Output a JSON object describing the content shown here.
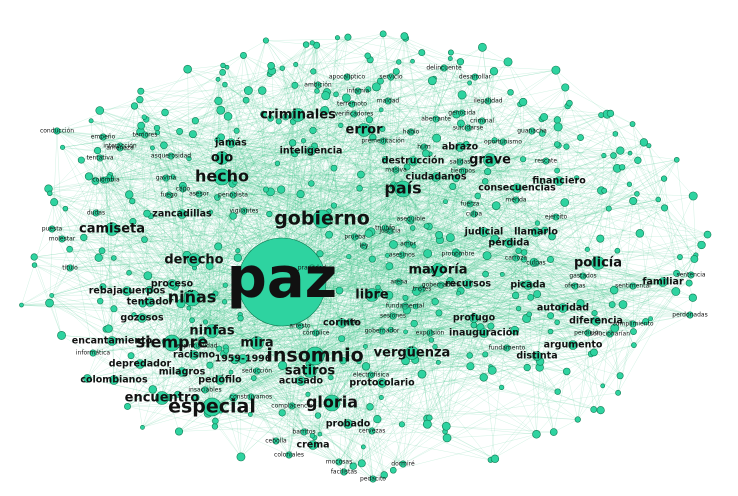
{
  "graph": {
    "node_color": "#2ed3a0",
    "edge_color": "#2fbf7e",
    "label_color": "#111111",
    "nodes": [
      {
        "label": "paz",
        "weight": 10
      },
      {
        "label": "gobierno",
        "weight": 5
      },
      {
        "label": "especial",
        "weight": 5
      },
      {
        "label": "insomnio",
        "weight": 5
      },
      {
        "label": "país",
        "weight": 4
      },
      {
        "label": "hecho",
        "weight": 4
      },
      {
        "label": "gloria",
        "weight": 4
      },
      {
        "label": "niñas",
        "weight": 4
      },
      {
        "label": "siempre",
        "weight": 4
      },
      {
        "label": "mayoría",
        "weight": 3
      },
      {
        "label": "policía",
        "weight": 3
      },
      {
        "label": "camiseta",
        "weight": 3
      },
      {
        "label": "libre",
        "weight": 3
      },
      {
        "label": "criminales",
        "weight": 3
      },
      {
        "label": "grave",
        "weight": 3
      },
      {
        "label": "error",
        "weight": 3
      },
      {
        "label": "ojo",
        "weight": 3
      },
      {
        "label": "ninfas",
        "weight": 3
      },
      {
        "label": "satiros",
        "weight": 3
      },
      {
        "label": "derecho",
        "weight": 3
      },
      {
        "label": "encuentro",
        "weight": 3
      },
      {
        "label": "mira",
        "weight": 3
      },
      {
        "label": "vergüenza",
        "weight": 3
      },
      {
        "label": "ciudadanos",
        "weight": 2
      },
      {
        "label": "jamás",
        "weight": 2
      },
      {
        "label": "abrazo",
        "weight": 2
      },
      {
        "label": "proceso",
        "weight": 2
      },
      {
        "label": "familiar",
        "weight": 2
      },
      {
        "label": "autoridad",
        "weight": 2
      },
      {
        "label": "diferencia",
        "weight": 2
      },
      {
        "label": "profugo",
        "weight": 2
      },
      {
        "label": "inauguración",
        "weight": 2
      },
      {
        "label": "protocolario",
        "weight": 2
      },
      {
        "label": "consecuencias",
        "weight": 2
      },
      {
        "label": "destrucción",
        "weight": 2
      },
      {
        "label": "inteligencia",
        "weight": 2
      },
      {
        "label": "rebajacuerpos",
        "weight": 2
      },
      {
        "label": "encantamiento",
        "weight": 2
      },
      {
        "label": "colombianos",
        "weight": 2
      },
      {
        "label": "zancadillas",
        "weight": 2
      },
      {
        "label": "milagros",
        "weight": 2
      },
      {
        "label": "racismo",
        "weight": 2
      },
      {
        "label": "depredador",
        "weight": 2
      },
      {
        "label": "gozosos",
        "weight": 2
      },
      {
        "label": "tentador",
        "weight": 2
      },
      {
        "label": "pedófilo",
        "weight": 2
      },
      {
        "label": "1959-1996",
        "weight": 2
      },
      {
        "label": "acusado",
        "weight": 2
      },
      {
        "label": "crema",
        "weight": 2
      },
      {
        "label": "probado",
        "weight": 2
      },
      {
        "label": "corinto",
        "weight": 2
      },
      {
        "label": "picada",
        "weight": 2
      },
      {
        "label": "recursos",
        "weight": 2
      },
      {
        "label": "distinta",
        "weight": 2
      },
      {
        "label": "argumento",
        "weight": 2
      },
      {
        "label": "llamarlo",
        "weight": 2
      },
      {
        "label": "pérdida",
        "weight": 2
      },
      {
        "label": "judicial",
        "weight": 2
      },
      {
        "label": "financiero",
        "weight": 2
      },
      {
        "label": "ambición",
        "weight": 1
      },
      {
        "label": "delincuente",
        "weight": 1
      },
      {
        "label": "desarrollar",
        "weight": 1
      },
      {
        "label": "apocalíptico",
        "weight": 1
      },
      {
        "label": "servicio",
        "weight": 1
      },
      {
        "label": "infamia",
        "weight": 1
      },
      {
        "label": "ilegalidad",
        "weight": 1
      },
      {
        "label": "verificadores",
        "weight": 1
      },
      {
        "label": "terremoto",
        "weight": 1
      },
      {
        "label": "maldad",
        "weight": 1
      },
      {
        "label": "genocida",
        "weight": 1
      },
      {
        "label": "criminal",
        "weight": 1
      },
      {
        "label": "suicidarse",
        "weight": 1
      },
      {
        "label": "aberrante",
        "weight": 1
      },
      {
        "label": "premeditación",
        "weight": 1
      },
      {
        "label": "guanacha",
        "weight": 1
      },
      {
        "label": "oportunismo",
        "weight": 1
      },
      {
        "label": "masiva",
        "weight": 1
      },
      {
        "label": "salidas",
        "weight": 1
      },
      {
        "label": "tiempos",
        "weight": 1
      },
      {
        "label": "periodista",
        "weight": 1
      },
      {
        "label": "gaviria",
        "weight": 1
      },
      {
        "label": "colombia",
        "weight": 1
      },
      {
        "label": "amenaza",
        "weight": 1
      },
      {
        "label": "asquerosidad",
        "weight": 1
      },
      {
        "label": "interacción",
        "weight": 1
      },
      {
        "label": "tentativa",
        "weight": 1
      },
      {
        "label": "conducción",
        "weight": 1
      },
      {
        "label": "empeño",
        "weight": 1
      },
      {
        "label": "temores",
        "weight": 1
      },
      {
        "label": "dudas",
        "weight": 1
      },
      {
        "label": "puesta",
        "weight": 1
      },
      {
        "label": "molestar",
        "weight": 1
      },
      {
        "label": "título",
        "weight": 1
      },
      {
        "label": "informática",
        "weight": 1
      },
      {
        "label": "seducción",
        "weight": 1
      },
      {
        "label": "insaciables",
        "weight": 1
      },
      {
        "label": "espiritualidad",
        "weight": 1
      },
      {
        "label": "complacencia",
        "weight": 1
      },
      {
        "label": "construyamos",
        "weight": 1
      },
      {
        "label": "cervezas",
        "weight": 1
      },
      {
        "label": "mocosas",
        "weight": 1
      },
      {
        "label": "facilistas",
        "weight": 1
      },
      {
        "label": "dormiré",
        "weight": 1
      },
      {
        "label": "pedacito",
        "weight": 1
      },
      {
        "label": "cebolla",
        "weight": 1
      },
      {
        "label": "coloniales",
        "weight": 1
      },
      {
        "label": "barritos",
        "weight": 1
      },
      {
        "label": "electrofísica",
        "weight": 1
      },
      {
        "label": "gobernador",
        "weight": 1
      },
      {
        "label": "gobernadora",
        "weight": 1
      },
      {
        "label": "expulsión",
        "weight": 1
      },
      {
        "label": "fundamento",
        "weight": 1
      },
      {
        "label": "perdición",
        "weight": 1
      },
      {
        "label": "solucionarían",
        "weight": 1
      },
      {
        "label": "sentencia",
        "weight": 1
      },
      {
        "label": "cumplimiento",
        "weight": 1
      },
      {
        "label": "sentimental",
        "weight": 1
      },
      {
        "label": "perdonadas",
        "weight": 1
      },
      {
        "label": "asesinos",
        "weight": 1
      },
      {
        "label": "pravedad",
        "weight": 1
      },
      {
        "label": "cómplice",
        "weight": 1
      },
      {
        "label": "arena",
        "weight": 1
      },
      {
        "label": "tristes",
        "weight": 1
      },
      {
        "label": "prueba",
        "weight": 1
      },
      {
        "label": "justicia",
        "weight": 1
      },
      {
        "label": "triunfo",
        "weight": 1
      },
      {
        "label": "hum",
        "weight": 1
      },
      {
        "label": "hablo",
        "weight": 1
      },
      {
        "label": "fundamental",
        "weight": 1
      },
      {
        "label": "mérito",
        "weight": 1
      },
      {
        "label": "sesiones",
        "weight": 1
      },
      {
        "label": "arresto",
        "weight": 1
      },
      {
        "label": "gastados",
        "weight": 1
      },
      {
        "label": "culpas",
        "weight": 1
      },
      {
        "label": "vigilantes",
        "weight": 1
      },
      {
        "label": "asequible",
        "weight": 1
      },
      {
        "label": "capo",
        "weight": 1
      },
      {
        "label": "fuego",
        "weight": 1
      },
      {
        "label": "asesor",
        "weight": 1
      },
      {
        "label": "ofertas",
        "weight": 1
      },
      {
        "label": "pronombre",
        "weight": 1
      },
      {
        "label": "carroza",
        "weight": 1
      },
      {
        "label": "fuerza",
        "weight": 1
      },
      {
        "label": "mérida",
        "weight": 1
      },
      {
        "label": "ejército",
        "weight": 1
      },
      {
        "label": "culpa",
        "weight": 1
      },
      {
        "label": "rescate",
        "weight": 1
      },
      {
        "label": "amor",
        "weight": 1
      },
      {
        "label": "ley",
        "weight": 1
      }
    ]
  }
}
